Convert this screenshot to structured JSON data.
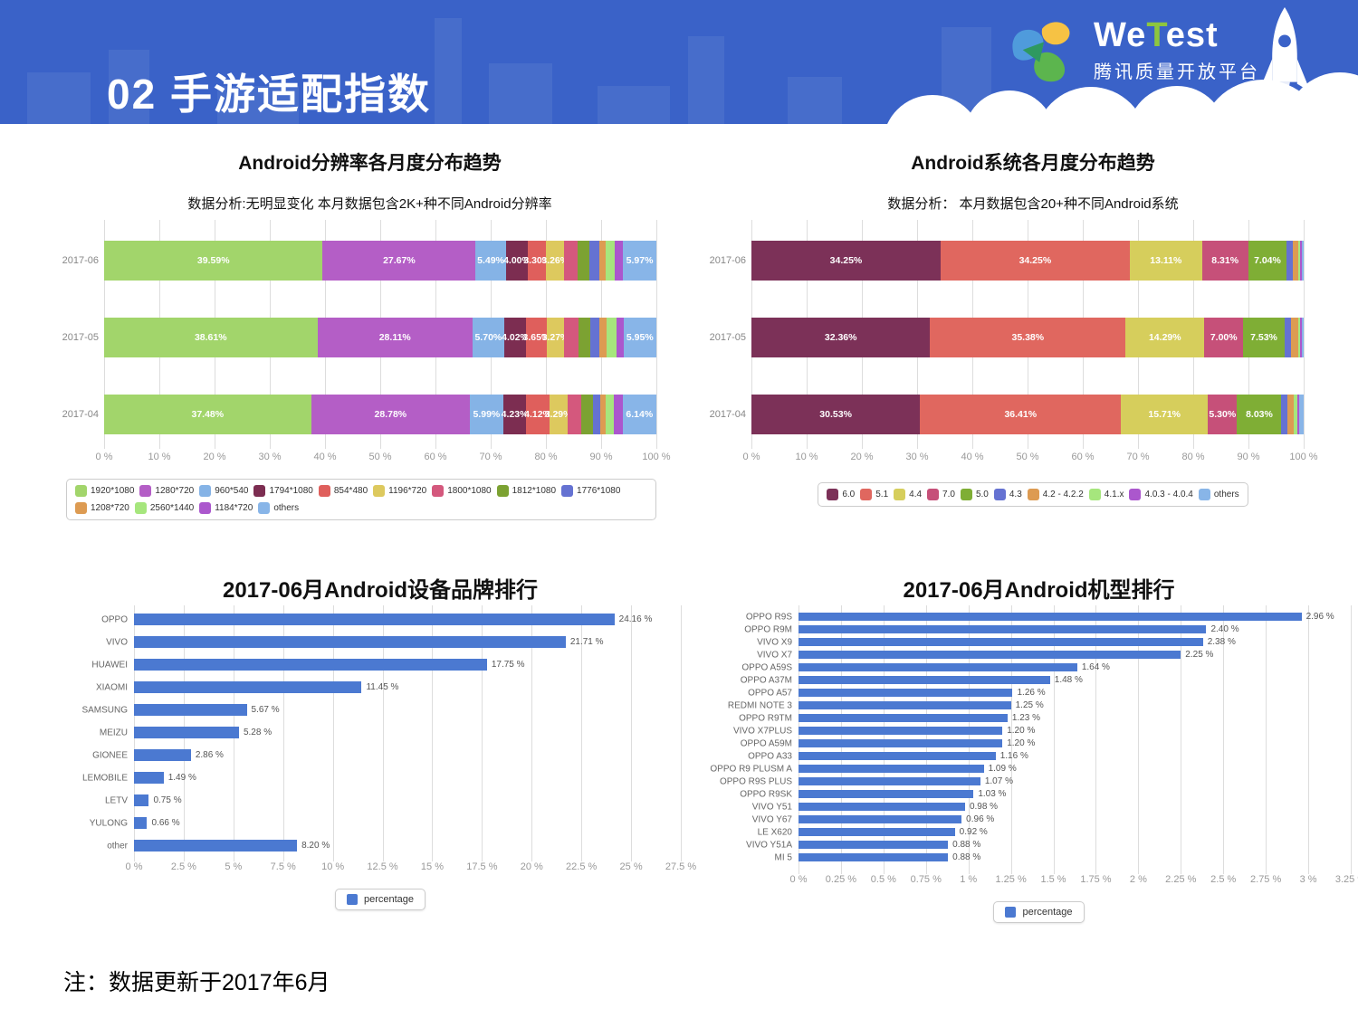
{
  "header": {
    "title": "02 手游适配指数",
    "logo": {
      "brand_we": "We",
      "brand_t": "T",
      "brand_est": "est",
      "brand_subtitle": "腾讯质量开放平台"
    }
  },
  "footer": {
    "note": "注：数据更新于2017年6月"
  },
  "colors": {
    "header_blue": "#3a62c8",
    "bar_blue": "#4b79d1"
  },
  "chart_data": [
    {
      "type": "bar",
      "variant": "stacked-horizontal",
      "title": "Android分辨率各月度分布趋势",
      "subtitle": "数据分析:无明显变化 本月数据包含2K+种不同Android分辨率",
      "categories": [
        "2017-06",
        "2017-05",
        "2017-04"
      ],
      "xlim": [
        0,
        100
      ],
      "x_ticks": [
        "0 %",
        "10 %",
        "20 %",
        "30 %",
        "40 %",
        "50 %",
        "60 %",
        "70 %",
        "80 %",
        "90 %",
        "100 %"
      ],
      "legend_position": "bottom",
      "grid": true,
      "series": [
        {
          "name": "1920*1080",
          "color": "#a2d56b",
          "values": [
            39.59,
            38.61,
            37.48
          ]
        },
        {
          "name": "1280*720",
          "color": "#b45ec6",
          "values": [
            27.67,
            28.11,
            28.78
          ]
        },
        {
          "name": "960*540",
          "color": "#85b3e6",
          "values": [
            5.49,
            5.7,
            5.99
          ]
        },
        {
          "name": "1794*1080",
          "color": "#7c2d51",
          "values": [
            4.0,
            4.02,
            4.23
          ]
        },
        {
          "name": "854*480",
          "color": "#df5f5c",
          "values": [
            3.3,
            3.65,
            4.12
          ]
        },
        {
          "name": "1196*720",
          "color": "#ddc95e",
          "values": [
            3.26,
            3.27,
            3.29
          ]
        },
        {
          "name": "1800*1080",
          "color": "#d4587d",
          "values": [
            2.4,
            2.5,
            2.6
          ],
          "estimated": true
        },
        {
          "name": "1812*1080",
          "color": "#7ca232",
          "values": [
            2.1,
            2.2,
            2.0
          ],
          "estimated": true
        },
        {
          "name": "1776*1080",
          "color": "#6572d2",
          "values": [
            1.8,
            1.7,
            1.3
          ],
          "estimated": true
        },
        {
          "name": "1208*720",
          "color": "#dd9b52",
          "values": [
            1.3,
            1.3,
            1.1
          ],
          "estimated": true
        },
        {
          "name": "2560*1440",
          "color": "#a6e67d",
          "values": [
            1.6,
            1.7,
            1.5
          ],
          "estimated": true
        },
        {
          "name": "1184*720",
          "color": "#ab57cd",
          "values": [
            1.5,
            1.3,
            1.5
          ],
          "estimated": true
        },
        {
          "name": "others",
          "color": "#88b5e8",
          "values": [
            5.97,
            5.95,
            6.14
          ]
        }
      ]
    },
    {
      "type": "bar",
      "variant": "stacked-horizontal",
      "title": "Android系统各月度分布趋势",
      "subtitle": "数据分析：  本月数据包含20+种不同Android系统",
      "categories": [
        "2017-06",
        "2017-05",
        "2017-04"
      ],
      "xlim": [
        0,
        100
      ],
      "x_ticks": [
        "0 %",
        "10 %",
        "20 %",
        "30 %",
        "40 %",
        "50 %",
        "60 %",
        "70 %",
        "80 %",
        "90 %",
        "100 %"
      ],
      "legend_position": "bottom",
      "grid": true,
      "series": [
        {
          "name": "6.0",
          "color": "#7c3158",
          "values": [
            34.25,
            32.36,
            30.53
          ]
        },
        {
          "name": "5.1",
          "color": "#e0675f",
          "values": [
            34.25,
            35.38,
            36.41
          ]
        },
        {
          "name": "4.4",
          "color": "#d6ce5c",
          "values": [
            13.11,
            14.29,
            15.71
          ]
        },
        {
          "name": "7.0",
          "color": "#c65079",
          "values": [
            8.31,
            7.0,
            5.3
          ]
        },
        {
          "name": "5.0",
          "color": "#7fae35",
          "values": [
            7.04,
            7.53,
            8.03
          ]
        },
        {
          "name": "4.3",
          "color": "#6572d2",
          "values": [
            1.0,
            1.2,
            1.0
          ],
          "estimated": true
        },
        {
          "name": "4.2 - 4.2.2",
          "color": "#dd9b52",
          "values": [
            1.0,
            1.2,
            1.2
          ],
          "estimated": true
        },
        {
          "name": "4.1.x",
          "color": "#a6e67d",
          "values": [
            0.4,
            0.4,
            0.6
          ],
          "estimated": true
        },
        {
          "name": "4.0.3 - 4.0.4",
          "color": "#ab57cd",
          "values": [
            0.3,
            0.3,
            0.4
          ],
          "estimated": true
        },
        {
          "name": "others",
          "color": "#88b5e8",
          "values": [
            0.34,
            0.34,
            0.82
          ],
          "estimated": true
        }
      ]
    },
    {
      "type": "bar",
      "variant": "horizontal",
      "title": "2017-06月Android设备品牌排行",
      "categories": [
        "OPPO",
        "VIVO",
        "HUAWEI",
        "XIAOMI",
        "SAMSUNG",
        "MEIZU",
        "GIONEE",
        "LEMOBILE",
        "LETV",
        "YULONG",
        "other"
      ],
      "values": [
        24.16,
        21.71,
        17.75,
        11.45,
        5.67,
        5.28,
        2.86,
        1.49,
        0.75,
        0.66,
        8.2
      ],
      "xlim": [
        0,
        27.5
      ],
      "x_ticks": [
        "0 %",
        "2.5 %",
        "5 %",
        "7.5 %",
        "10 %",
        "12.5 %",
        "15 %",
        "17.5 %",
        "20 %",
        "22.5 %",
        "25 %",
        "27.5 %"
      ],
      "legend_label": "percentage",
      "bar_color": "#4b79d1",
      "grid": true,
      "legend_position": "bottom"
    },
    {
      "type": "bar",
      "variant": "horizontal",
      "title": "2017-06月Android机型排行",
      "categories": [
        "OPPO R9S",
        "OPPO R9M",
        "VIVO X9",
        "VIVO X7",
        "OPPO A59S",
        "OPPO A37M",
        "OPPO A57",
        "REDMI NOTE 3",
        "OPPO R9TM",
        "VIVO X7PLUS",
        "OPPO A59M",
        "OPPO A33",
        "OPPO R9 PLUSM A",
        "OPPO R9S PLUS",
        "OPPO R9SK",
        "VIVO Y51",
        "VIVO Y67",
        "LE X620",
        "VIVO Y51A",
        "MI 5"
      ],
      "values": [
        2.96,
        2.4,
        2.38,
        2.25,
        1.64,
        1.48,
        1.26,
        1.25,
        1.23,
        1.2,
        1.2,
        1.16,
        1.09,
        1.07,
        1.03,
        0.98,
        0.96,
        0.92,
        0.88,
        0.88
      ],
      "xlim": [
        0,
        3.25
      ],
      "x_ticks": [
        "0 %",
        "0.25 %",
        "0.5 %",
        "0.75 %",
        "1 %",
        "1.25 %",
        "1.5 %",
        "1.75 %",
        "2 %",
        "2.25 %",
        "2.5 %",
        "2.75 %",
        "3 %",
        "3.25 %"
      ],
      "legend_label": "percentage",
      "bar_color": "#4b79d1",
      "grid": true,
      "legend_position": "bottom"
    }
  ]
}
